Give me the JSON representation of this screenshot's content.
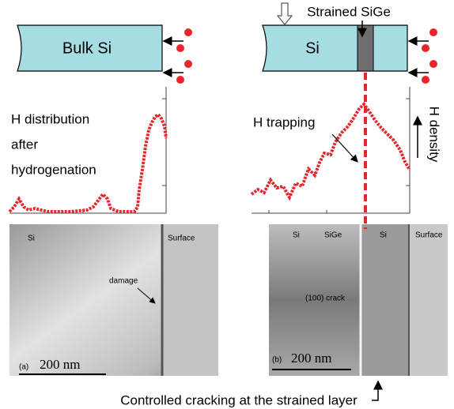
{
  "panels": [
    {
      "sample": "Bulk Si",
      "profile_label": [
        "H distribution",
        "after",
        "hydrogenation"
      ],
      "tem": {
        "labels": [
          "Si",
          "damage",
          "Surface"
        ],
        "panel": "(a)",
        "scale_bar": "200 nm"
      }
    },
    {
      "sample": "Si",
      "layer": "Strained SiGe",
      "profile_label": [
        "H trapping"
      ],
      "tem": {
        "labels": [
          "Si",
          "SiGe",
          "Si",
          "Surface",
          "(100) crack"
        ],
        "panel": "(b)",
        "scale_bar": "200 nm"
      }
    }
  ],
  "axis_label": "H density",
  "caption": "Controlled cracking at the strained layer"
}
